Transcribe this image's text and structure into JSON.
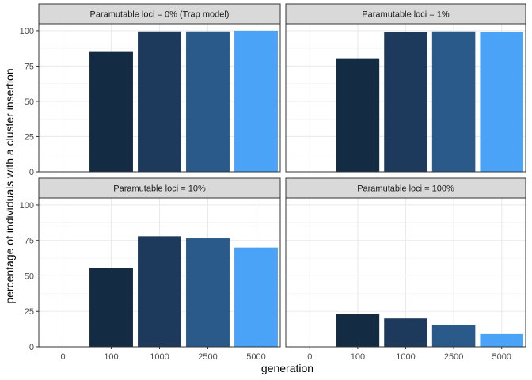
{
  "chart_data": {
    "type": "bar",
    "xlabel": "generation",
    "ylabel": "percentage of individuals with a cluster insertion",
    "categories": [
      "0",
      "100",
      "1000",
      "2500",
      "5000"
    ],
    "ylim": [
      0,
      105
    ],
    "yticks": [
      0,
      25,
      50,
      75,
      100
    ],
    "grid": true,
    "legend": "none",
    "bar_colors": [
      "#132B43",
      "#132B43",
      "#1D3A5C",
      "#2A5A8A",
      "#4AA3F7"
    ],
    "panels": [
      {
        "label": "Paramutable loci = 0% (Trap model)",
        "values": [
          0,
          85,
          99.5,
          99.5,
          100
        ]
      },
      {
        "label": "Paramutable loci = 1%",
        "values": [
          0,
          80.5,
          99,
          99.5,
          99
        ]
      },
      {
        "label": "Paramutable loci = 10%",
        "values": [
          0,
          55.5,
          78,
          76.5,
          70
        ]
      },
      {
        "label": "Paramutable loci = 100%",
        "values": [
          0,
          23,
          20,
          15.5,
          9
        ]
      }
    ]
  }
}
